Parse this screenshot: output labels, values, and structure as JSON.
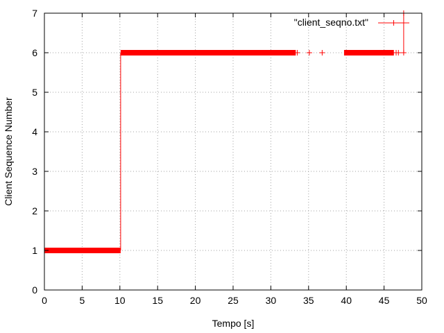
{
  "chart_data": {
    "type": "scatter",
    "title": "",
    "xlabel": "Tempo [s]",
    "ylabel": "Client Sequence Number",
    "xlim": [
      0,
      50
    ],
    "ylim": [
      0,
      7
    ],
    "x_ticks": [
      "0",
      "5",
      "10",
      "15",
      "20",
      "25",
      "30",
      "35",
      "40",
      "45",
      "50"
    ],
    "y_ticks": [
      "0",
      "1",
      "2",
      "3",
      "4",
      "5",
      "6",
      "7"
    ],
    "grid": true,
    "legend_position": "top-right",
    "series": [
      {
        "name": "\"client_seqno.txt\"",
        "color": "#ff0000",
        "marker": "plus",
        "dense_runs": [
          {
            "x_start": 0,
            "x_end": 10.1,
            "y": 1
          },
          {
            "x_start": 10.1,
            "x_end": 33.3,
            "y": 6
          },
          {
            "x_start": 39.7,
            "x_end": 46.3,
            "y": 6
          }
        ],
        "points": [
          {
            "x": 33.5,
            "y": 6
          },
          {
            "x": 35.1,
            "y": 6
          },
          {
            "x": 36.8,
            "y": 6
          },
          {
            "x": 46.6,
            "y": 6
          },
          {
            "x": 46.9,
            "y": 6
          },
          {
            "x": 47.6,
            "y": 6
          },
          {
            "x": 47.6,
            "y": 7
          }
        ],
        "steps": [
          {
            "x": 10.1,
            "y_from": 1,
            "y_to": 6
          },
          {
            "x": 47.6,
            "y_from": 6,
            "y_to": 7
          }
        ]
      }
    ]
  }
}
